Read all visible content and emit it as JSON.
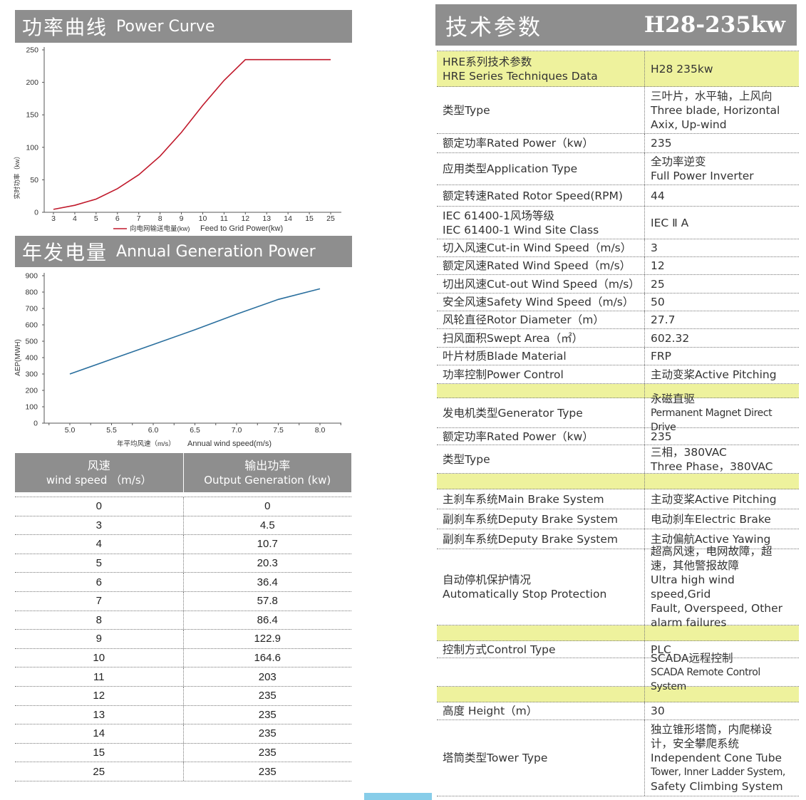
{
  "power_curve": {
    "title_cn": "功率曲线",
    "title_en": "Power Curve",
    "ylabel": "实时功率（kw）",
    "legend_cn": "向电网输送电量(kw)",
    "legend_en": "Feed to Grid Power(kw)",
    "color": "#c0192b",
    "y_ticks": [
      "0",
      "50",
      "100",
      "150",
      "200",
      "250"
    ],
    "x_ticks": [
      "3",
      "4",
      "5",
      "6",
      "7",
      "8",
      "9",
      "10",
      "11",
      "12",
      "13",
      "14",
      "15",
      "25"
    ]
  },
  "annual": {
    "title_cn": "年发电量",
    "title_en": "Annual Generation Power",
    "ylabel": "AEP(MWH)",
    "xlabel_cn": "年平均风速（m/s）",
    "xlabel_en": "Annual wind speed(m/s)",
    "color": "#2a6f9e",
    "y_ticks": [
      "0",
      "100",
      "200",
      "300",
      "400",
      "500",
      "600",
      "700",
      "800",
      "900"
    ],
    "x_ticks": [
      "5.0",
      "5.5",
      "6.0",
      "6.5",
      "7.0",
      "7.5",
      "8.0"
    ]
  },
  "chart_data": [
    {
      "type": "line",
      "title": "功率曲线 Power Curve",
      "ylabel": "实时功率（kw）",
      "categories": [
        "3",
        "4",
        "5",
        "6",
        "7",
        "8",
        "9",
        "10",
        "11",
        "12",
        "13",
        "14",
        "15",
        "25"
      ],
      "series": [
        {
          "name": "向电网输送电量(kw) Feed to Grid Power(kw)",
          "values": [
            4.5,
            10.7,
            20.3,
            36.4,
            57.8,
            86.4,
            122.9,
            164.6,
            203,
            235,
            235,
            235,
            235,
            235
          ]
        }
      ],
      "ylim": [
        0,
        250
      ],
      "grid": false
    },
    {
      "type": "line",
      "title": "年发电量 Annual Generation Power",
      "xlabel": "年平均风速（m/s） Annual wind speed(m/s)",
      "ylabel": "AEP(MWH)",
      "x": [
        5.0,
        5.5,
        6.0,
        6.5,
        7.0,
        7.5,
        8.0
      ],
      "series": [
        {
          "values": [
            300,
            390,
            480,
            570,
            665,
            755,
            820
          ]
        }
      ],
      "xlim": [
        4.7,
        8.25
      ],
      "ylim": [
        0,
        900
      ],
      "grid": false
    }
  ],
  "speed_table": {
    "header": {
      "c1_cn": "风速",
      "c1_en": "wind speed （m/s）",
      "c2_cn": "输出功率",
      "c2_en": "Output Generation (kw)"
    },
    "rows": [
      [
        "0",
        "0"
      ],
      [
        "3",
        "4.5"
      ],
      [
        "4",
        "10.7"
      ],
      [
        "5",
        "20.3"
      ],
      [
        "6",
        "36.4"
      ],
      [
        "7",
        "57.8"
      ],
      [
        "8",
        "86.4"
      ],
      [
        "9",
        "122.9"
      ],
      [
        "10",
        "164.6"
      ],
      [
        "11",
        "203"
      ],
      [
        "12",
        "235"
      ],
      [
        "13",
        "235"
      ],
      [
        "14",
        "235"
      ],
      [
        "15",
        "235"
      ],
      [
        "25",
        "235"
      ]
    ]
  },
  "spec": {
    "title_cn": "技术参数",
    "model": "H28-235kw",
    "highlight_color": "#eef29d",
    "rows": [
      {
        "k": [
          "HRE系列技术参数",
          "HRE Series Techniques Data"
        ],
        "v": [
          "H28 235kw"
        ],
        "hl": true,
        "h": 50
      },
      {
        "k": [
          "类型Type"
        ],
        "v": [
          "三叶片，水平轴，上风向",
          "Three blade, Horizontal",
          "Axix, Up-wind"
        ],
        "h": 66
      },
      {
        "k": [
          "额定功率Rated Power（kw）"
        ],
        "v": [
          "235"
        ],
        "h": 27
      },
      {
        "k": [
          "应用类型Application Type"
        ],
        "v": [
          "全功率逆变",
          "Full Power Inverter"
        ],
        "h": 45
      },
      {
        "k": [
          "额定转速Rated Rotor Speed(RPM)"
        ],
        "v": [
          "44"
        ],
        "h": 30
      },
      {
        "k": [
          "IEC 61400-1风场等级",
          "IEC 61400-1 Wind Site Class"
        ],
        "v": [
          "IEC Ⅱ A"
        ],
        "h": 46
      },
      {
        "k": [
          "切入风速Cut-in Wind Speed（m/s）"
        ],
        "v": [
          "3"
        ],
        "h": 25
      },
      {
        "k": [
          "额定风速Rated Wind Speed（m/s）"
        ],
        "v": [
          "12"
        ],
        "h": 25
      },
      {
        "k": [
          "切出风速Cut-out Wind Speed（m/s）"
        ],
        "v": [
          "25"
        ],
        "h": 26
      },
      {
        "k": [
          "安全风速Safety Wind Speed（m/s）"
        ],
        "v": [
          "50"
        ],
        "h": 25
      },
      {
        "k": [
          "风轮直径Rotor Diameter（m）"
        ],
        "v": [
          "27.7"
        ],
        "h": 25
      },
      {
        "k": [
          "扫风面积Swept Area（㎡）"
        ],
        "v": [
          "602.32"
        ],
        "h": 26
      },
      {
        "k": [
          "叶片材质Blade Material"
        ],
        "v": [
          "FRP"
        ],
        "h": 25
      },
      {
        "k": [
          "功率控制Power Control"
        ],
        "v": [
          "主动变桨Active Pitching"
        ],
        "h": 26
      },
      {
        "k": [
          ""
        ],
        "v": [
          ""
        ],
        "hl": true,
        "h": 20
      },
      {
        "k": [
          "发电机类型Generator Type"
        ],
        "v": [
          "永磁直驱",
          "Permanent Magnet Direct Drive"
        ],
        "small": true,
        "h": 42
      },
      {
        "k": [
          "额定功率Rated Power（kw）"
        ],
        "v": [
          "235"
        ],
        "h": 24
      },
      {
        "k": [
          "类型Type"
        ],
        "v": [
          "三相，380VAC",
          "Three Phase，380VAC"
        ],
        "h": 40
      },
      {
        "k": [
          ""
        ],
        "v": [
          ""
        ],
        "hl": true,
        "h": 22
      },
      {
        "k": [
          "主刹车系统Main Brake System"
        ],
        "v": [
          "主动变桨Active Pitching"
        ],
        "h": 28
      },
      {
        "k": [
          "副刹车系统Deputy Brake System"
        ],
        "v": [
          "电动刹车Electric Brake"
        ],
        "h": 28
      },
      {
        "k": [
          "副刹车系统Deputy Brake System"
        ],
        "v": [
          "主动偏航Active Yawing"
        ],
        "h": 28
      },
      {
        "k": [
          "自动停机保护情况",
          "Automatically Stop Protection"
        ],
        "v": [
          "超高风速，电网故障，超",
          "速，其他警报故障",
          "Ultra high wind speed,Grid",
          "Fault, Overspeed, Other",
          "alarm failures"
        ],
        "h": 107
      },
      {
        "k": [
          ""
        ],
        "v": [
          ""
        ],
        "hl": true,
        "h": 22
      },
      {
        "k": [
          "控制方式Control Type"
        ],
        "v": [
          "PLC"
        ],
        "h": 24
      },
      {
        "k": [
          ""
        ],
        "v": [
          "SCADA远程控制",
          "SCADA Remote Control System"
        ],
        "small": true,
        "h": 40
      },
      {
        "k": [
          ""
        ],
        "v": [
          ""
        ],
        "hl": true,
        "h": 22
      },
      {
        "k": [
          "高度 Height（m）"
        ],
        "v": [
          "30"
        ],
        "h": 25
      },
      {
        "k": [
          "塔筒类型Tower Type"
        ],
        "v": [
          "独立锥形塔筒，内爬梯设",
          "计，安全攀爬系统",
          "Independent Cone Tube",
          "Tower, Inner Ladder System,",
          "Safety Climbing System"
        ],
        "small": true,
        "h": 107
      }
    ]
  }
}
